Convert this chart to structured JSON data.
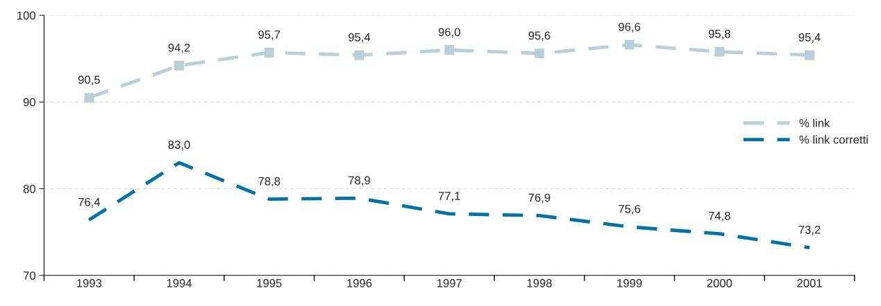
{
  "chart_data": {
    "type": "line",
    "categories": [
      "1993",
      "1994",
      "1995",
      "1996",
      "1997",
      "1998",
      "1999",
      "2000",
      "2001"
    ],
    "series": [
      {
        "name": "% link",
        "color": "#b7d0da",
        "marker": "square",
        "values": [
          90.5,
          94.2,
          95.7,
          95.4,
          96.0,
          95.6,
          96.6,
          95.8,
          95.4
        ],
        "value_labels": [
          "90,5",
          "94,2",
          "95,7",
          "95,4",
          "96,0",
          "95,6",
          "96,6",
          "95,8",
          "95,4"
        ]
      },
      {
        "name": "% link corretti",
        "color": "#0072a6",
        "marker": "none",
        "values": [
          76.4,
          83.0,
          78.8,
          78.9,
          77.1,
          76.9,
          75.6,
          74.8,
          73.2
        ],
        "value_labels": [
          "76,4",
          "83,0",
          "78,8",
          "78,9",
          "77,1",
          "76,9",
          "75,6",
          "74,8",
          "73,2"
        ]
      }
    ],
    "ylim": [
      70,
      100
    ],
    "yticks": [
      70,
      80,
      90,
      100
    ],
    "grid": "y",
    "legend": "right",
    "line_style": "dashed"
  }
}
